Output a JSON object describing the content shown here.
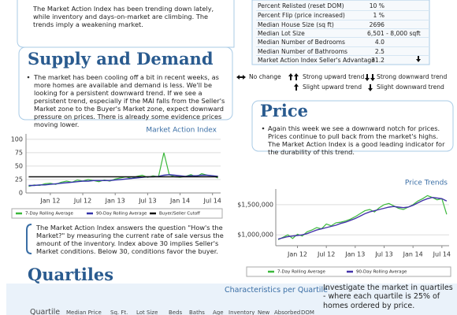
{
  "summary": {
    "text": "The Market Action Index has been trending down lately, while inventory and days-on-market are climbing. The trends imply a weakening market."
  },
  "stats_table": {
    "rows": [
      [
        "Percent Relisted (reset DOM)",
        "10 %"
      ],
      [
        "Percent Flip (price increased)",
        "1 %"
      ],
      [
        "Median House Size (sq ft)",
        "2696"
      ],
      [
        "Median Lot Size",
        "6,501 - 8,000 sqft"
      ],
      [
        "Median Number of Bedrooms",
        "4.0"
      ],
      [
        "Median Number of Bathrooms",
        "2.5"
      ],
      [
        "Market Action Index",
        "Seller's Advantage",
        "31.2"
      ]
    ]
  },
  "trend_legend": [
    "No change",
    "Strong upward trend",
    "Strong downward trend",
    "Slight upward trend",
    "Slight downward trend"
  ],
  "supply_demand": {
    "heading": "Supply and Demand",
    "text": "The market has been cooling off a bit in recent weeks, as more homes are available and demand is less.  We'll be looking for a persistent downward trend.  If we see a persistent trend, especially if the MAI falls from the Seller's Market zone to the Buyer's Market zone, expect downward pressure on prices. There is already some evidence prices moving lower.",
    "note": "The Market Action Index answers the question \"How's the Market?\" by measuring the current rate of sale versus the amount of the inventory.  Index above 30 implies Seller's Market conditions. Below 30, conditions favor the buyer."
  },
  "market_action_chart": {
    "type": "line",
    "title": "Market Action Index",
    "categories": [
      null,
      null,
      null,
      null,
      "Jan 12",
      null,
      null,
      null,
      null,
      null,
      "Jul 12",
      null,
      null,
      null,
      null,
      null,
      "Jan 13",
      null,
      null,
      null,
      null,
      null,
      "Jul 13",
      null,
      null,
      null,
      null,
      null,
      "Jan 14",
      null,
      null,
      null,
      null,
      null,
      "Jul 14",
      null
    ],
    "series": [
      {
        "name": "7-Day Rolling Average",
        "color": "#3cb83c",
        "values": [
          12,
          15,
          14,
          17,
          18,
          16,
          20,
          22,
          20,
          24,
          22,
          25,
          23,
          21,
          24,
          22,
          26,
          28,
          30,
          27,
          31,
          33,
          29,
          32,
          30,
          75,
          34,
          30,
          29,
          31,
          34,
          30,
          36,
          33,
          32,
          28
        ]
      },
      {
        "name": "90-Day Rolling Average",
        "color": "#3333aa",
        "values": [
          14,
          14,
          15,
          15,
          16,
          17,
          18,
          19,
          20,
          21,
          22,
          22,
          23,
          23,
          23,
          23,
          24,
          25,
          26,
          27,
          28,
          29,
          30,
          30,
          31,
          33,
          34,
          33,
          32,
          31,
          32,
          32,
          33,
          33,
          32,
          31
        ]
      },
      {
        "name": "Buyer/Seller Cutoff",
        "color": "#111111",
        "values": [
          30,
          30,
          30,
          30,
          30,
          30,
          30,
          30,
          30,
          30,
          30,
          30,
          30,
          30,
          30,
          30,
          30,
          30,
          30,
          30,
          30,
          30,
          30,
          30,
          30,
          30,
          30,
          30,
          30,
          30,
          30,
          30,
          30,
          30,
          30,
          30
        ]
      }
    ],
    "ylim": [
      0,
      110
    ],
    "yticks": [
      0,
      25,
      50,
      75,
      100
    ],
    "grid": true
  },
  "price": {
    "heading": "Price",
    "text": "Again this week we see a downward notch for prices. Prices continue to pull back from the market's highs. The Market Action Index is a good leading indicator for the durability of this trend."
  },
  "price_chart": {
    "type": "line",
    "title": "Price Trends",
    "categories": [
      null,
      null,
      null,
      null,
      "Jan 12",
      null,
      null,
      null,
      null,
      null,
      "Jul 12",
      null,
      null,
      null,
      null,
      null,
      "Jan 13",
      null,
      null,
      null,
      null,
      null,
      "Jul 13",
      null,
      null,
      null,
      null,
      null,
      "Jan 14",
      null,
      null,
      null,
      null,
      null,
      "Jul 14",
      null
    ],
    "series": [
      {
        "name": "7-Day Rolling Average",
        "color": "#3cb83c",
        "values": [
          920000,
          960000,
          1000000,
          940000,
          1010000,
          980000,
          1050000,
          1080000,
          1120000,
          1100000,
          1180000,
          1150000,
          1200000,
          1210000,
          1230000,
          1260000,
          1300000,
          1350000,
          1400000,
          1420000,
          1380000,
          1450000,
          1500000,
          1520000,
          1480000,
          1440000,
          1420000,
          1460000,
          1500000,
          1560000,
          1600000,
          1650000,
          1620000,
          1580000,
          1600000,
          1340000
        ]
      },
      {
        "name": "90-Day Rolling Average",
        "color": "#4433aa",
        "values": [
          930000,
          950000,
          970000,
          980000,
          990000,
          1000000,
          1020000,
          1050000,
          1080000,
          1100000,
          1120000,
          1140000,
          1160000,
          1190000,
          1210000,
          1240000,
          1270000,
          1310000,
          1350000,
          1380000,
          1400000,
          1420000,
          1440000,
          1460000,
          1470000,
          1460000,
          1450000,
          1460000,
          1490000,
          1530000,
          1570000,
          1600000,
          1620000,
          1610000,
          1600000,
          1560000
        ]
      }
    ],
    "ylim": [
      820000,
      1760000
    ],
    "yticks": [
      {
        "value": 1000000,
        "label": "$1,000,000"
      },
      {
        "value": 1500000,
        "label": "$1,500,000"
      }
    ],
    "grid": true
  },
  "quartiles": {
    "heading": "Quartiles",
    "subheading": "Characteristics per Quartile",
    "text": "Investigate the market in quartiles - where each quartile is 25% of homes ordered by price.",
    "headers": [
      "Quartile",
      "Median Price",
      "Sq. Ft.",
      "Lot Size",
      "Beds",
      "Baths",
      "Age",
      "Inventory",
      "New",
      "Absorbed",
      "DOM"
    ]
  }
}
